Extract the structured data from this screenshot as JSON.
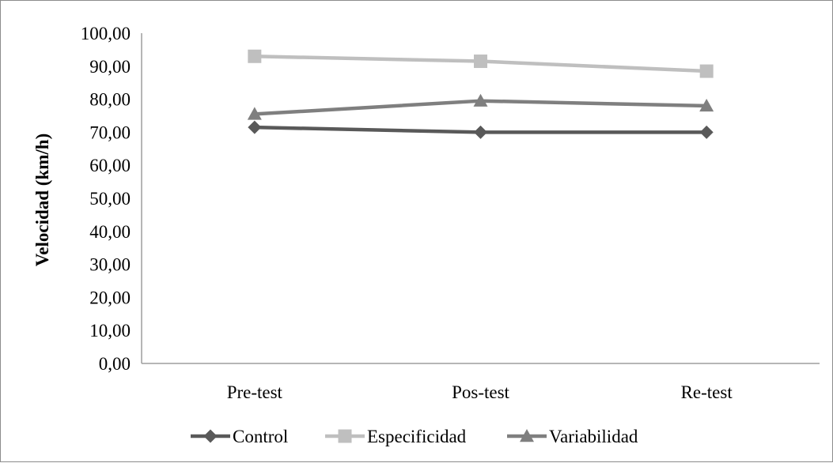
{
  "chart_data": {
    "type": "line",
    "title": "",
    "xlabel": "",
    "ylabel": "Velocidad (km/h)",
    "categories": [
      "Pre-test",
      "Pos-test",
      "Re-test"
    ],
    "ylim": [
      0,
      100
    ],
    "yticks": [
      "0,00",
      "10,00",
      "20,00",
      "30,00",
      "40,00",
      "50,00",
      "60,00",
      "70,00",
      "80,00",
      "90,00",
      "100,00"
    ],
    "grid": false,
    "legend_position": "bottom",
    "series": [
      {
        "name": "Control",
        "values": [
          71.5,
          70.0,
          70.0
        ],
        "color": "#595959",
        "marker": "diamond"
      },
      {
        "name": "Especificidad",
        "values": [
          93.0,
          91.5,
          88.5
        ],
        "color": "#bfbfbf",
        "marker": "square"
      },
      {
        "name": "Variabilidad",
        "values": [
          75.5,
          79.5,
          78.0
        ],
        "color": "#7f7f7f",
        "marker": "triangle"
      }
    ]
  }
}
